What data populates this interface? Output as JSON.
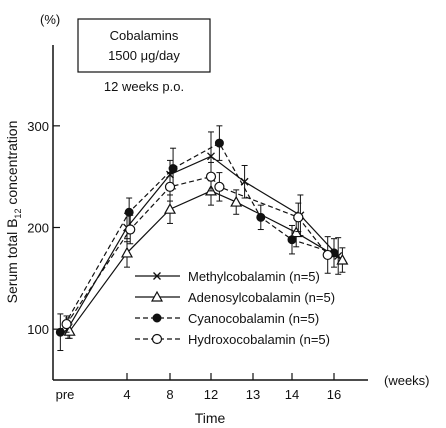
{
  "chart_data": {
    "type": "line",
    "xlabel": "Time",
    "x_unit": "(weeks)",
    "ylabel": "Serum total B",
    "ylabel_sub": "12",
    "ylabel_tail": " concentration",
    "y_unit": "(%)",
    "ylim": [
      50,
      350
    ],
    "yticks": [
      100,
      200,
      300
    ],
    "categories": [
      "pre",
      "4",
      "8",
      "12",
      "13",
      "14",
      "16"
    ],
    "annotation": {
      "box_line1": "Cobalamins",
      "box_line2": "1500 μg/day",
      "line3": "12 weeks p.o."
    },
    "series": [
      {
        "name": "Methylcobalamin (n=5)",
        "marker": "x",
        "dash": "solid",
        "x": [
          0.2,
          4,
          8,
          12,
          12.8,
          14.4,
          16.2
        ],
        "y": [
          101,
          200,
          252,
          270,
          245,
          212,
          172
        ],
        "err": [
          10,
          14,
          14,
          24,
          16,
          20,
          18
        ]
      },
      {
        "name": "Adenosylcobalamin (n=5)",
        "marker": "triangle",
        "dash": "solid",
        "x": [
          0.3,
          4,
          8,
          12,
          12.6,
          14.2,
          16.4
        ],
        "y": [
          98,
          175,
          218,
          236,
          225,
          195,
          168
        ],
        "err": [
          7,
          14,
          14,
          14,
          12,
          14,
          12
        ]
      },
      {
        "name": "Cyanocobalamin (n=5)",
        "marker": "filled-circle",
        "dash": "dashed",
        "x": [
          -0.3,
          4.2,
          8.3,
          12.2,
          13.2,
          14.0,
          16.0
        ],
        "y": [
          97,
          215,
          258,
          283,
          210,
          188,
          175
        ],
        "err": [
          18,
          14,
          20,
          17,
          12,
          14,
          14
        ]
      },
      {
        "name": "Hydroxocobalamin (n=5)",
        "marker": "open-circle",
        "dash": "dashed",
        "x": [
          0.1,
          4.3,
          8.0,
          12.0,
          12.2,
          14.3,
          15.7
        ],
        "y": [
          105,
          198,
          240,
          250,
          240,
          210,
          173
        ],
        "err": [
          8,
          14,
          14,
          14,
          14,
          14,
          18
        ]
      }
    ]
  }
}
